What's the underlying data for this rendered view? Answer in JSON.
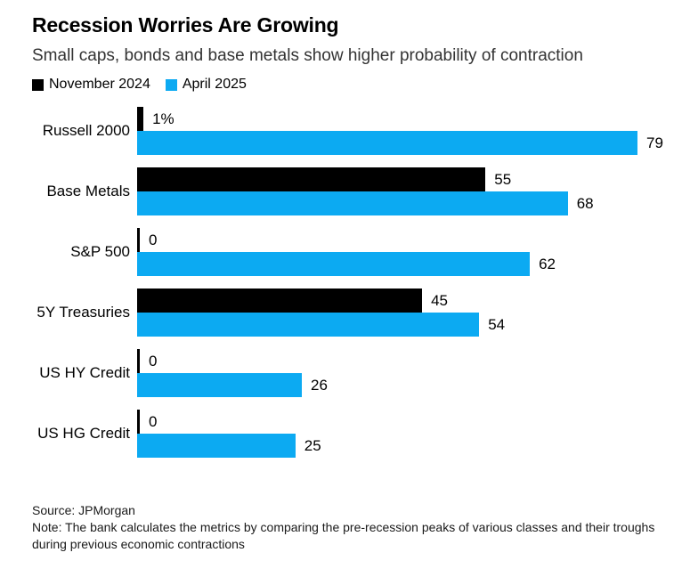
{
  "header": {
    "title": "Recession Worries Are Growing",
    "subtitle": "Small caps, bonds and base metals show higher probability of contraction"
  },
  "legend": {
    "items": [
      {
        "label": "November 2024",
        "color": "#000000"
      },
      {
        "label": "April 2025",
        "color": "#0caaf2"
      }
    ]
  },
  "chart_data": {
    "type": "bar",
    "orientation": "horizontal",
    "title": "Recession Worries Are Growing",
    "subtitle": "Small caps, bonds and base metals show higher probability of contraction",
    "unit": "probability of contraction, %",
    "categories": [
      "Russell 2000",
      "Base Metals",
      "S&P 500",
      "5Y Treasuries",
      "US HY Credit",
      "US HG Credit"
    ],
    "series": [
      {
        "name": "November 2024",
        "color": "#000000",
        "values": [
          1,
          55,
          0,
          45,
          0,
          0
        ],
        "value_labels": [
          "1%",
          "55",
          "0",
          "45",
          "0",
          "0"
        ]
      },
      {
        "name": "April 2025",
        "color": "#0caaf2",
        "values": [
          79,
          68,
          62,
          54,
          26,
          25
        ],
        "value_labels": [
          "79",
          "68",
          "62",
          "54",
          "26",
          "25"
        ]
      }
    ],
    "xlim": [
      0,
      79
    ],
    "grid": false,
    "legend_position": "top",
    "value_labels_position": "right-of-bar"
  },
  "footer": {
    "source": "Source: JPMorgan",
    "note": "Note: The bank calculates the metrics by comparing the pre-recession peaks of various classes and their troughs during previous economic contractions"
  }
}
